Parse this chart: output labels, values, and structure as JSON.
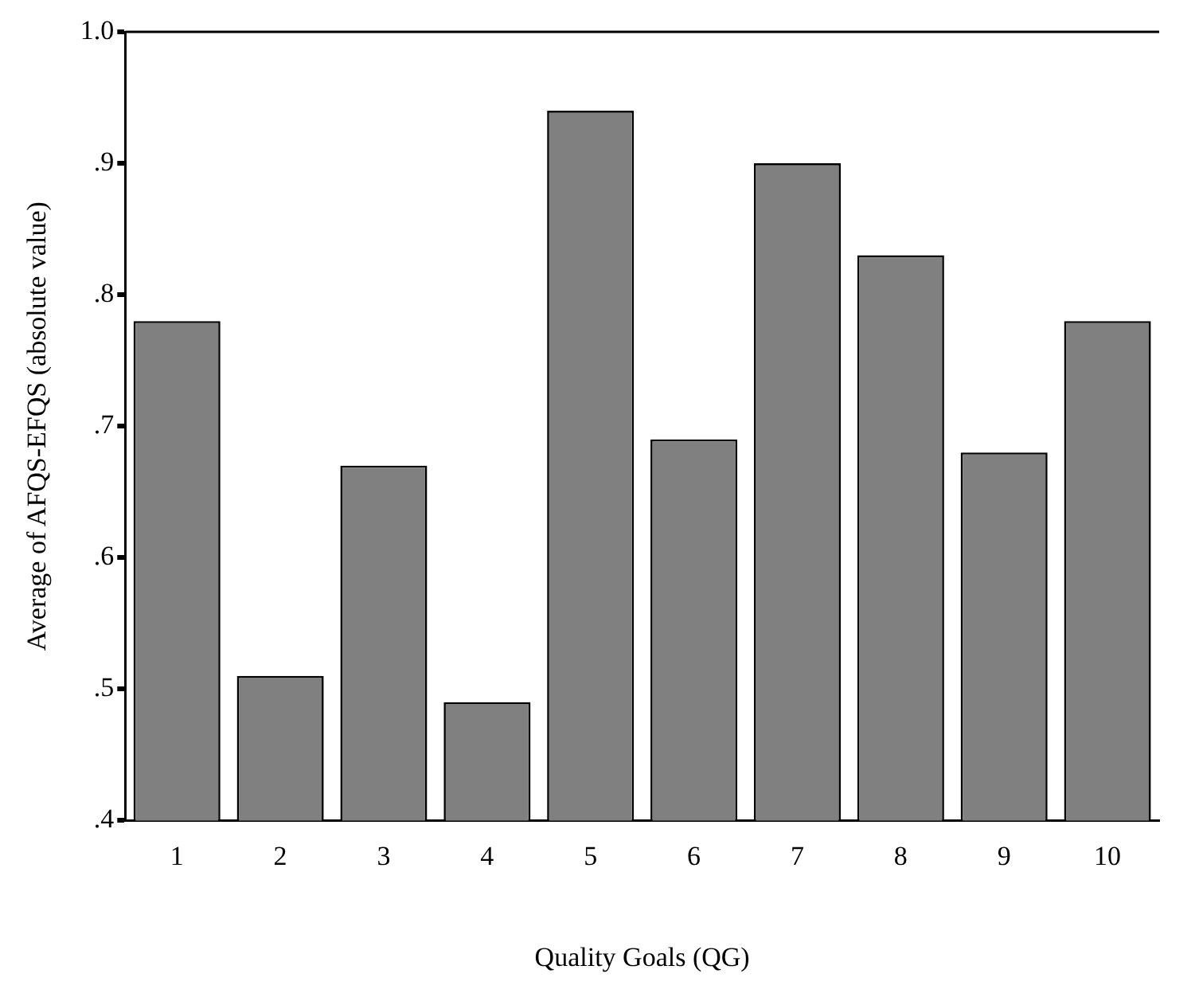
{
  "chart_data": {
    "type": "bar",
    "xlabel": "Quality Goals (QG)",
    "ylabel": "Average of AFQS-EFQS (absolute value)",
    "categories": [
      "1",
      "2",
      "3",
      "4",
      "5",
      "6",
      "7",
      "8",
      "9",
      "10"
    ],
    "values": [
      0.78,
      0.51,
      0.67,
      0.49,
      0.94,
      0.69,
      0.9,
      0.83,
      0.68,
      0.78
    ],
    "color": "#808080",
    "ylim": [
      0.4,
      1.0
    ],
    "yticks": [
      {
        "value": 0.4,
        "label": ".4"
      },
      {
        "value": 0.5,
        "label": ".5"
      },
      {
        "value": 0.6,
        "label": ".6"
      },
      {
        "value": 0.7,
        "label": ".7"
      },
      {
        "value": 0.8,
        "label": ".8"
      },
      {
        "value": 0.9,
        "label": ".9"
      },
      {
        "value": 1.0,
        "label": "1.0"
      }
    ],
    "grid": false,
    "legend": false
  }
}
